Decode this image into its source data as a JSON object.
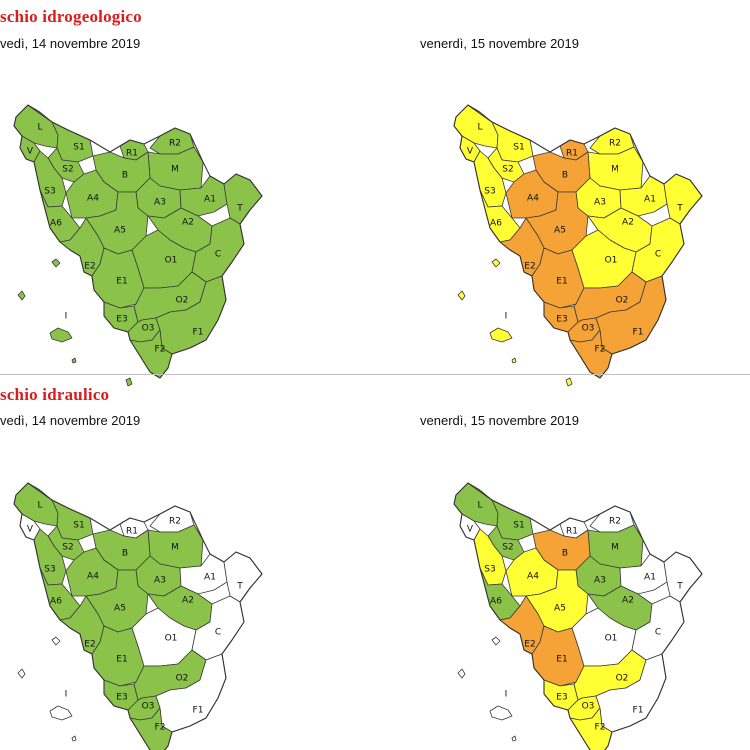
{
  "colors": {
    "green": "#8bc34a",
    "yellow": "#ffff33",
    "orange": "#f5a337",
    "white": "#ffffff"
  },
  "sections": [
    {
      "title": "schio idrogeologico",
      "maps": [
        {
          "date": "vedì, 14 novembre 2019",
          "levels": {
            "L": "green",
            "V": "green",
            "S1": "green",
            "S2": "green",
            "S3": "green",
            "A6": "green",
            "R1": "green",
            "R2": "green",
            "M": "green",
            "B": "green",
            "A4": "green",
            "A3": "green",
            "A1": "green",
            "T": "green",
            "A5": "green",
            "A2": "green",
            "E2": "green",
            "E1": "green",
            "O1": "green",
            "C": "green",
            "E3": "green",
            "O2": "green",
            "O3": "green",
            "F1": "green",
            "F2": "green",
            "I": "green"
          }
        },
        {
          "date": "venerdì, 15 novembre 2019",
          "levels": {
            "L": "yellow",
            "V": "yellow",
            "S1": "yellow",
            "S2": "yellow",
            "S3": "yellow",
            "A6": "yellow",
            "R1": "orange",
            "R2": "yellow",
            "M": "yellow",
            "B": "orange",
            "A4": "orange",
            "A3": "yellow",
            "A1": "yellow",
            "T": "yellow",
            "A5": "orange",
            "A2": "yellow",
            "E2": "orange",
            "E1": "orange",
            "O1": "yellow",
            "C": "yellow",
            "E3": "orange",
            "O2": "orange",
            "O3": "orange",
            "F1": "orange",
            "F2": "orange",
            "I": "yellow"
          }
        }
      ]
    },
    {
      "title": "schio idraulico",
      "maps": [
        {
          "date": "vedì, 14 novembre 2019",
          "levels": {
            "L": "green",
            "V": "white",
            "S1": "green",
            "S2": "green",
            "S3": "green",
            "A6": "green",
            "R1": "white",
            "R2": "white",
            "M": "green",
            "B": "green",
            "A4": "green",
            "A3": "green",
            "A1": "white",
            "T": "white",
            "A5": "green",
            "A2": "green",
            "E2": "green",
            "E1": "green",
            "O1": "white",
            "C": "white",
            "E3": "green",
            "O2": "green",
            "O3": "green",
            "F1": "white",
            "F2": "green",
            "I": "white"
          }
        },
        {
          "date": "venerdì, 15 novembre 2019",
          "levels": {
            "L": "green",
            "V": "white",
            "S1": "green",
            "S2": "green",
            "S3": "yellow",
            "A6": "green",
            "R1": "white",
            "R2": "white",
            "M": "green",
            "B": "orange",
            "A4": "yellow",
            "A3": "green",
            "A1": "white",
            "T": "white",
            "A5": "yellow",
            "A2": "green",
            "E2": "orange",
            "E1": "orange",
            "O1": "white",
            "C": "white",
            "E3": "yellow",
            "O2": "yellow",
            "O3": "yellow",
            "F1": "white",
            "F2": "yellow",
            "I": "white"
          }
        }
      ]
    }
  ]
}
